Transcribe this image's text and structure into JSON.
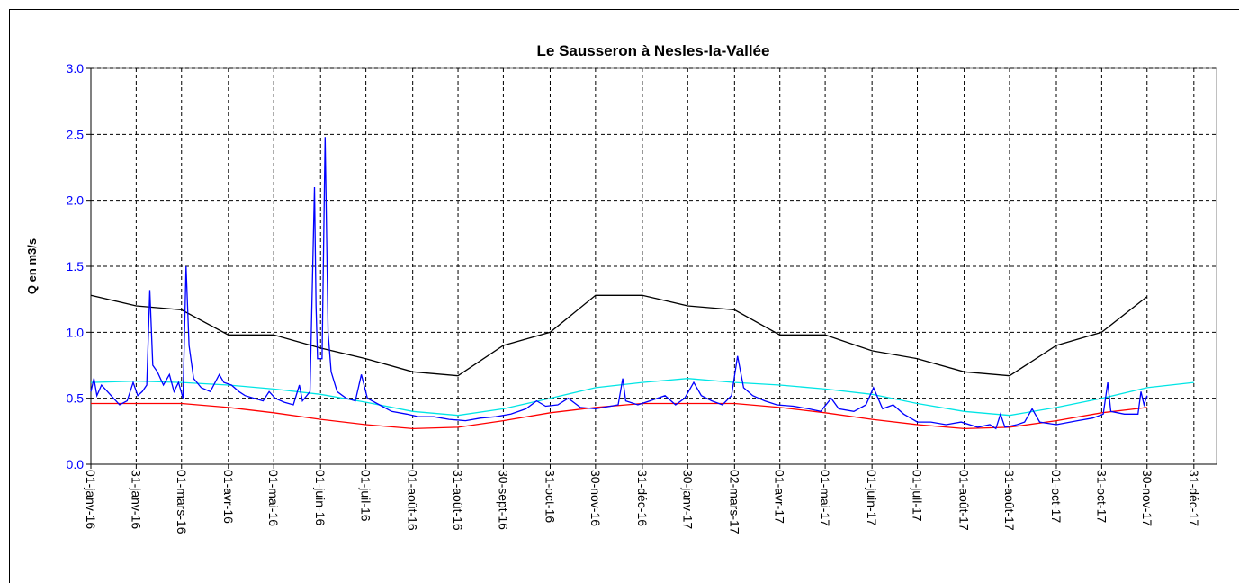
{
  "chart_data": {
    "type": "line",
    "title": "Le Sausseron à Nesles-la-Vallée",
    "ylabel": "Q en m3/s",
    "xlim": [
      "2016-01-01",
      "2018-01-15"
    ],
    "xticks": [
      {
        "value": "2016-01-01",
        "label": "01-janv-16"
      },
      {
        "value": "2016-01-31",
        "label": "31-janv-16"
      },
      {
        "value": "2016-03-01",
        "label": "01-mars-16"
      },
      {
        "value": "2016-04-01",
        "label": "01-avr-16"
      },
      {
        "value": "2016-05-01",
        "label": "01-mai-16"
      },
      {
        "value": "2016-06-01",
        "label": "01-juin-16"
      },
      {
        "value": "2016-07-01",
        "label": "01-juil-16"
      },
      {
        "value": "2016-08-01",
        "label": "01-août-16"
      },
      {
        "value": "2016-08-31",
        "label": "31-août-16"
      },
      {
        "value": "2016-09-30",
        "label": "30-sept-16"
      },
      {
        "value": "2016-10-31",
        "label": "31-oct-16"
      },
      {
        "value": "2016-11-30",
        "label": "30-nov-16"
      },
      {
        "value": "2016-12-31",
        "label": "31-déc-16"
      },
      {
        "value": "2017-01-30",
        "label": "30-janv-17"
      },
      {
        "value": "2017-03-02",
        "label": "02-mars-17"
      },
      {
        "value": "2017-04-01",
        "label": "01-avr-17"
      },
      {
        "value": "2017-05-01",
        "label": "01-mai-17"
      },
      {
        "value": "2017-06-01",
        "label": "01-juin-17"
      },
      {
        "value": "2017-07-01",
        "label": "01-juil-17"
      },
      {
        "value": "2017-08-01",
        "label": "01-août-17"
      },
      {
        "value": "2017-08-31",
        "label": "31-août-17"
      },
      {
        "value": "2017-10-01",
        "label": "01-oct-17"
      },
      {
        "value": "2017-10-31",
        "label": "31-oct-17"
      },
      {
        "value": "2017-11-30",
        "label": "30-nov-17"
      },
      {
        "value": "2017-12-31",
        "label": "31-déc-17"
      }
    ],
    "ylim": [
      0,
      3
    ],
    "yticks": [
      {
        "value": 0,
        "label": "0.0"
      },
      0.5,
      {
        "value": 1,
        "label": "1.0"
      },
      1.5,
      {
        "value": 2,
        "label": "2.0"
      },
      2.5,
      {
        "value": 3,
        "label": "3.0"
      }
    ],
    "grid": true,
    "series": [
      {
        "color": "#000000",
        "x": [
          "2016-01-01",
          "2016-01-31",
          "2016-03-01",
          "2016-04-01",
          "2016-05-01",
          "2016-06-01",
          "2016-07-01",
          "2016-08-01",
          "2016-08-31",
          "2016-09-30",
          "2016-10-31",
          "2016-11-30",
          "2016-12-31",
          "2017-01-30",
          "2017-03-02",
          "2017-04-01",
          "2017-05-01",
          "2017-06-01",
          "2017-07-01",
          "2017-08-01",
          "2017-08-31",
          "2017-10-01",
          "2017-10-31",
          "2017-11-30"
        ],
        "values": [
          1.28,
          1.2,
          1.17,
          0.98,
          0.98,
          0.88,
          0.8,
          0.7,
          0.67,
          0.9,
          1.0,
          1.28,
          1.28,
          1.2,
          1.17,
          0.98,
          0.98,
          0.86,
          0.8,
          0.7,
          0.67,
          0.9,
          1.0,
          1.27
        ]
      },
      {
        "color": "#ff0000",
        "x": [
          "2016-01-01",
          "2016-03-01",
          "2016-04-01",
          "2016-05-01",
          "2016-06-01",
          "2016-07-01",
          "2016-08-01",
          "2016-08-31",
          "2016-09-30",
          "2016-10-31",
          "2016-11-30",
          "2016-12-31",
          "2017-03-02",
          "2017-04-01",
          "2017-05-01",
          "2017-06-01",
          "2017-07-01",
          "2017-08-01",
          "2017-08-31",
          "2017-10-01",
          "2017-10-31",
          "2017-11-30"
        ],
        "values": [
          0.46,
          0.46,
          0.43,
          0.39,
          0.34,
          0.3,
          0.27,
          0.28,
          0.33,
          0.39,
          0.43,
          0.46,
          0.46,
          0.43,
          0.39,
          0.34,
          0.3,
          0.27,
          0.28,
          0.33,
          0.39,
          0.43
        ]
      },
      {
        "color": "#00e5e5",
        "x": [
          "2016-01-01",
          "2016-01-31",
          "2016-03-01",
          "2016-04-01",
          "2016-05-01",
          "2016-06-01",
          "2016-07-01",
          "2016-08-01",
          "2016-08-31",
          "2016-09-30",
          "2016-10-31",
          "2016-11-30",
          "2016-12-31",
          "2017-01-30",
          "2017-03-02",
          "2017-04-01",
          "2017-05-01",
          "2017-06-01",
          "2017-07-01",
          "2017-08-01",
          "2017-08-31",
          "2017-10-01",
          "2017-10-31",
          "2017-11-30",
          "2017-12-31"
        ],
        "values": [
          0.62,
          0.63,
          0.62,
          0.6,
          0.57,
          0.53,
          0.47,
          0.4,
          0.37,
          0.42,
          0.5,
          0.58,
          0.62,
          0.65,
          0.62,
          0.6,
          0.57,
          0.53,
          0.46,
          0.4,
          0.37,
          0.43,
          0.5,
          0.58,
          0.62
        ]
      },
      {
        "color": "#0000ff",
        "x": [
          "2016-01-01",
          "2016-01-03",
          "2016-01-05",
          "2016-01-08",
          "2016-01-12",
          "2016-01-16",
          "2016-01-20",
          "2016-01-25",
          "2016-01-29",
          "2016-02-01",
          "2016-02-04",
          "2016-02-07",
          "2016-02-09",
          "2016-02-11",
          "2016-02-14",
          "2016-02-18",
          "2016-02-22",
          "2016-02-25",
          "2016-02-28",
          "2016-03-02",
          "2016-03-04",
          "2016-03-06",
          "2016-03-09",
          "2016-03-14",
          "2016-03-20",
          "2016-03-26",
          "2016-03-29",
          "2016-04-03",
          "2016-04-08",
          "2016-04-12",
          "2016-04-18",
          "2016-04-24",
          "2016-04-28",
          "2016-05-02",
          "2016-05-08",
          "2016-05-14",
          "2016-05-18",
          "2016-05-20",
          "2016-05-25",
          "2016-05-28",
          "2016-05-29",
          "2016-05-30",
          "2016-06-02",
          "2016-06-04",
          "2016-06-06",
          "2016-06-08",
          "2016-06-12",
          "2016-06-18",
          "2016-06-24",
          "2016-06-28",
          "2016-07-02",
          "2016-07-10",
          "2016-07-18",
          "2016-07-28",
          "2016-08-05",
          "2016-08-15",
          "2016-08-25",
          "2016-09-05",
          "2016-09-15",
          "2016-09-25",
          "2016-10-05",
          "2016-10-15",
          "2016-10-22",
          "2016-10-28",
          "2016-11-05",
          "2016-11-12",
          "2016-11-20",
          "2016-11-30",
          "2016-12-10",
          "2016-12-15",
          "2016-12-18",
          "2016-12-20",
          "2016-12-28",
          "2017-01-05",
          "2017-01-15",
          "2017-01-22",
          "2017-01-28",
          "2017-02-03",
          "2017-02-08",
          "2017-02-15",
          "2017-02-22",
          "2017-02-28",
          "2017-03-04",
          "2017-03-08",
          "2017-03-14",
          "2017-03-22",
          "2017-03-30",
          "2017-04-10",
          "2017-04-20",
          "2017-04-28",
          "2017-05-05",
          "2017-05-10",
          "2017-05-20",
          "2017-05-28",
          "2017-06-02",
          "2017-06-08",
          "2017-06-15",
          "2017-06-22",
          "2017-07-01",
          "2017-07-10",
          "2017-07-20",
          "2017-07-30",
          "2017-08-10",
          "2017-08-18",
          "2017-08-22",
          "2017-08-25",
          "2017-08-28",
          "2017-09-05",
          "2017-09-10",
          "2017-09-15",
          "2017-09-20",
          "2017-10-01",
          "2017-10-15",
          "2017-10-25",
          "2017-11-01",
          "2017-11-04",
          "2017-11-06",
          "2017-11-15",
          "2017-11-24",
          "2017-11-26",
          "2017-11-28",
          "2017-11-30"
        ],
        "values": [
          0.55,
          0.65,
          0.52,
          0.6,
          0.55,
          0.5,
          0.45,
          0.48,
          0.62,
          0.52,
          0.55,
          0.6,
          1.32,
          0.75,
          0.7,
          0.6,
          0.68,
          0.55,
          0.62,
          0.5,
          1.5,
          0.9,
          0.65,
          0.58,
          0.55,
          0.68,
          0.62,
          0.6,
          0.55,
          0.52,
          0.5,
          0.48,
          0.55,
          0.5,
          0.47,
          0.45,
          0.6,
          0.48,
          0.55,
          2.1,
          1.2,
          0.8,
          0.8,
          2.48,
          1.0,
          0.7,
          0.55,
          0.5,
          0.48,
          0.68,
          0.5,
          0.45,
          0.4,
          0.38,
          0.36,
          0.36,
          0.34,
          0.33,
          0.35,
          0.36,
          0.38,
          0.42,
          0.48,
          0.44,
          0.45,
          0.5,
          0.43,
          0.42,
          0.44,
          0.45,
          0.65,
          0.48,
          0.45,
          0.48,
          0.52,
          0.45,
          0.5,
          0.62,
          0.52,
          0.48,
          0.45,
          0.52,
          0.82,
          0.58,
          0.52,
          0.48,
          0.45,
          0.44,
          0.42,
          0.4,
          0.5,
          0.42,
          0.4,
          0.45,
          0.58,
          0.42,
          0.45,
          0.38,
          0.32,
          0.32,
          0.3,
          0.32,
          0.28,
          0.3,
          0.27,
          0.38,
          0.28,
          0.3,
          0.32,
          0.42,
          0.32,
          0.3,
          0.33,
          0.35,
          0.38,
          0.62,
          0.4,
          0.38,
          0.38,
          0.55,
          0.45,
          0.52
        ]
      }
    ]
  }
}
